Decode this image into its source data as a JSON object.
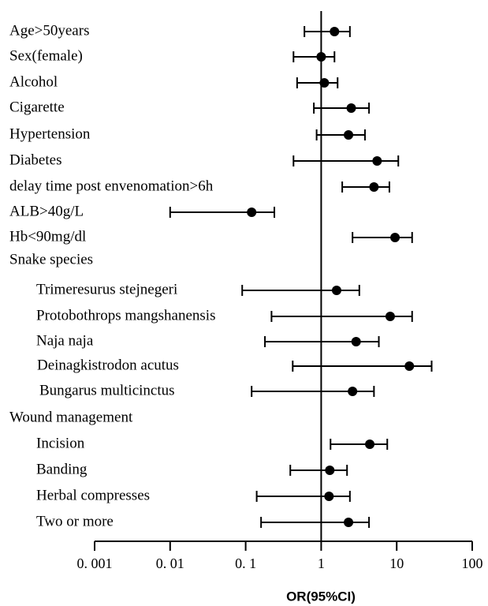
{
  "chart_data": {
    "type": "forest",
    "categories": [
      "Age>50years",
      "Sex(female)",
      "Alcohol",
      "Cigarette",
      "Hypertension",
      "Diabetes",
      "delay time post envenomation>6h",
      "ALB>40g/L",
      "Hb<90mg/dl",
      "Snake species",
      "Trimeresurus stejnegeri",
      "Protobothrops mangshanensis",
      "Naja naja",
      "Deinagkistrodon acutus",
      "Bungarus multicinctus",
      "Wound management",
      "Incision",
      "Banding",
      "Herbal compresses",
      "Two or more"
    ],
    "values": [
      1.5,
      1.0,
      1.1,
      2.5,
      2.3,
      5.5,
      5.0,
      0.12,
      9.5,
      null,
      1.6,
      8.2,
      2.9,
      14.7,
      2.6,
      null,
      4.4,
      1.3,
      1.27,
      2.3
    ],
    "lower": [
      0.6,
      0.43,
      0.48,
      0.8,
      0.87,
      0.43,
      1.9,
      0.01,
      2.6,
      null,
      0.09,
      0.22,
      0.18,
      0.42,
      0.12,
      null,
      1.33,
      0.39,
      0.14,
      0.16
    ],
    "upper": [
      2.4,
      1.5,
      1.65,
      4.3,
      3.8,
      10.5,
      8.0,
      0.24,
      16,
      null,
      3.2,
      16,
      5.8,
      29,
      5.0,
      null,
      7.5,
      2.2,
      2.4,
      4.3
    ],
    "color": "#000000",
    "xlabel": "OR(95%CI)",
    "xscale": "log",
    "xlim": [
      0.001,
      100
    ],
    "xticks": [
      {
        "value": 0.001,
        "label": "0. 001"
      },
      {
        "value": 0.01,
        "label": "0. 01"
      },
      {
        "value": 0.1,
        "label": "0. 1"
      },
      1,
      10,
      100
    ],
    "reference": 1
  }
}
